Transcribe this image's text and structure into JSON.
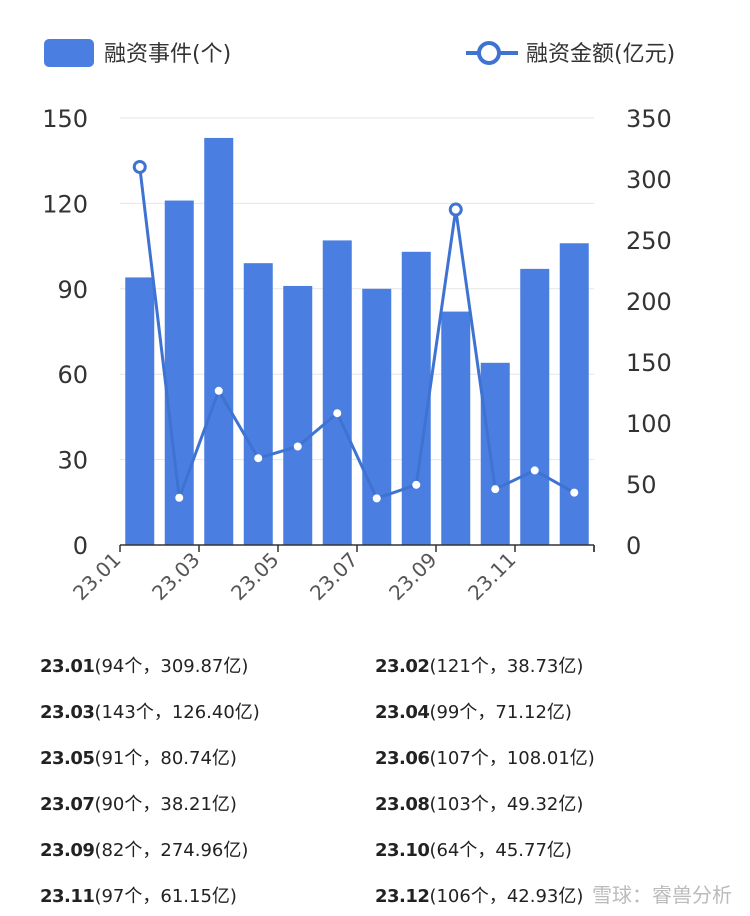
{
  "colors": {
    "bar": "#4a7ee0",
    "line": "#3f73d2",
    "point_fill": "#ffffff"
  },
  "legend": {
    "bar_label": "融资事件(个)",
    "line_label": "融资金额(亿元)"
  },
  "chart_data": {
    "type": "bar+line",
    "categories": [
      "23.01",
      "23.02",
      "23.03",
      "23.04",
      "23.05",
      "23.06",
      "23.07",
      "23.08",
      "23.09",
      "23.10",
      "23.11",
      "23.12"
    ],
    "x_tick_labels": [
      "23.01",
      "23.03",
      "23.05",
      "23.07",
      "23.09",
      "23.11"
    ],
    "series": [
      {
        "name": "融资事件(个)",
        "type": "bar",
        "axis": "left",
        "values": [
          94,
          121,
          143,
          99,
          91,
          107,
          90,
          103,
          82,
          64,
          97,
          106
        ]
      },
      {
        "name": "融资金额(亿元)",
        "type": "line",
        "axis": "right",
        "values": [
          309.87,
          38.73,
          126.4,
          71.12,
          80.74,
          108.01,
          38.21,
          49.32,
          274.96,
          45.77,
          61.15,
          42.93
        ]
      }
    ],
    "y_left": {
      "ylim": [
        0,
        150
      ],
      "ticks": [
        0,
        30,
        60,
        90,
        120,
        150
      ]
    },
    "y_right": {
      "ylim": [
        0,
        350
      ],
      "ticks": [
        0,
        50,
        100,
        150,
        200,
        250,
        300,
        350
      ]
    },
    "grid": true,
    "legend_position": "top"
  },
  "list": [
    {
      "month": "23.01",
      "detail": "(94个，309.87亿)"
    },
    {
      "month": "23.02",
      "detail": "(121个，38.73亿)"
    },
    {
      "month": "23.03",
      "detail": "(143个，126.40亿)"
    },
    {
      "month": "23.04",
      "detail": "(99个，71.12亿)"
    },
    {
      "month": "23.05",
      "detail": "(91个，80.74亿)"
    },
    {
      "month": "23.06",
      "detail": "(107个，108.01亿)"
    },
    {
      "month": "23.07",
      "detail": "(90个，38.21亿)"
    },
    {
      "month": "23.08",
      "detail": "(103个，49.32亿)"
    },
    {
      "month": "23.09",
      "detail": "(82个，274.96亿)"
    },
    {
      "month": "23.10",
      "detail": "(64个，45.77亿)"
    },
    {
      "month": "23.11",
      "detail": "(97个，61.15亿)"
    },
    {
      "month": "23.12",
      "detail": "(106个，42.93亿)"
    }
  ],
  "watermark": "雪球：睿兽分析"
}
